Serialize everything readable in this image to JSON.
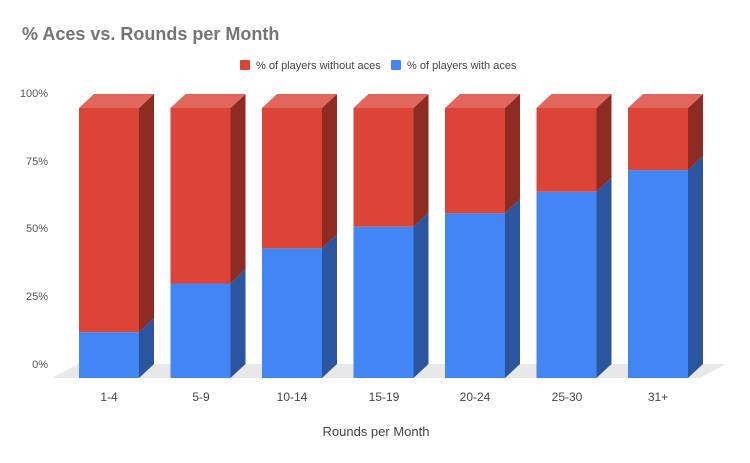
{
  "chart_data": {
    "type": "bar",
    "stacked": true,
    "style": "3d",
    "title": "% Aces vs. Rounds per Month",
    "xlabel": "Rounds per Month",
    "ylabel": "",
    "categories": [
      "1-4",
      "5-9",
      "10-14",
      "15-19",
      "20-24",
      "25-30",
      "31+"
    ],
    "series": [
      {
        "name": "% of players with aces",
        "color": "#4285f4",
        "values": [
          17,
          35,
          48,
          56,
          61,
          69,
          77
        ]
      },
      {
        "name": "% of players without aces",
        "color": "#db4437",
        "values": [
          83,
          65,
          52,
          44,
          39,
          31,
          23
        ]
      }
    ],
    "legend_order": [
      "% of players without aces",
      "% of players with aces"
    ],
    "yticks": [
      "0%",
      "25%",
      "50%",
      "75%",
      "100%"
    ],
    "ylim": [
      0,
      100
    ],
    "legend_position": "top",
    "grid": false
  }
}
